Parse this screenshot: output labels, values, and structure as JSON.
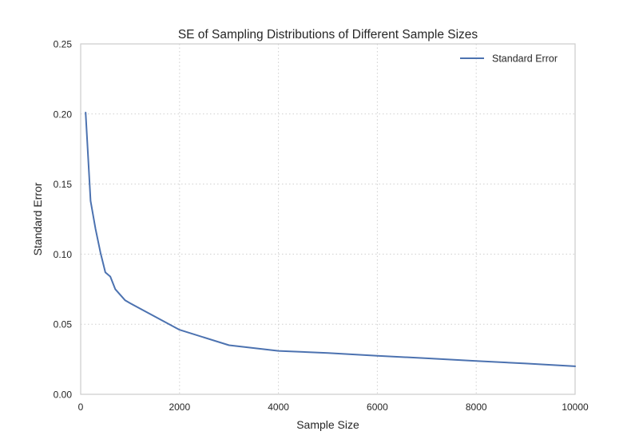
{
  "chart_data": {
    "type": "line",
    "title": "SE of Sampling Distributions of Different Sample Sizes",
    "xlabel": "Sample Size",
    "ylabel": "Standard Error",
    "xlim": [
      0,
      10000
    ],
    "ylim": [
      0.0,
      0.25
    ],
    "xticks": [
      "0",
      "2000",
      "4000",
      "6000",
      "8000",
      "10000"
    ],
    "yticks": [
      "0.00",
      "0.05",
      "0.10",
      "0.15",
      "0.20",
      "0.25"
    ],
    "grid": true,
    "legend_position": "top-right",
    "series": [
      {
        "name": "Standard Error",
        "color": "#4c72b0",
        "x": [
          100,
          200,
          300,
          400,
          500,
          600,
          700,
          800,
          900,
          1000,
          2000,
          3000,
          4000,
          5000,
          6000,
          7000,
          8000,
          9000,
          10000
        ],
        "y": [
          0.201,
          0.138,
          0.118,
          0.101,
          0.087,
          0.084,
          0.075,
          0.071,
          0.067,
          0.065,
          0.046,
          0.035,
          0.031,
          0.0295,
          0.0275,
          0.0257,
          0.0238,
          0.022,
          0.02
        ]
      }
    ]
  }
}
